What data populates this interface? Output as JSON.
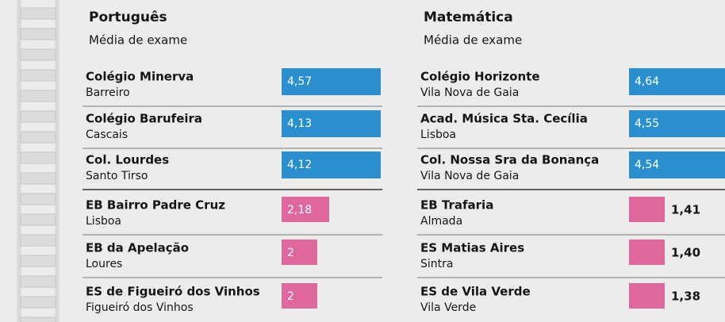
{
  "panels": [
    {
      "title": "Português",
      "subtitle": "Média de exame",
      "rows": [
        {
          "school": "Colégio Minerva",
          "place": "Barreiro",
          "value": "4,57"
        },
        {
          "school": "Colégio  Barufeira",
          "place": "Cascais",
          "value": "4,13"
        },
        {
          "school": "Col. Lourdes",
          "place": "Santo Tirso",
          "value": "4,12"
        },
        {
          "school": "EB Bairro Padre Cruz",
          "place": "Lisboa",
          "value": "2,18"
        },
        {
          "school": "EB da Apelação",
          "place": "Loures",
          "value": "2"
        },
        {
          "school": "ES de Figueiró dos Vinhos",
          "place": "Figueiró dos Vinhos",
          "value": "2"
        }
      ]
    },
    {
      "title": "Matemática",
      "subtitle": "Média de exame",
      "rows": [
        {
          "school": "Colégio Horizonte",
          "place": "Vila Nova de Gaia",
          "value": "4,64"
        },
        {
          "school": "Acad. Música Sta. Cecília",
          "place": "Lisboa",
          "value": "4,55"
        },
        {
          "school": "Col. Nossa Sra da Bonança",
          "place": "Vila Nova de Gaia",
          "value": "4,54"
        },
        {
          "school": "EB Trafaria",
          "place": "Almada",
          "value": "1,41"
        },
        {
          "school": "ES Matias Aires",
          "place": "Sintra",
          "value": "1,40"
        },
        {
          "school": "ES de Vila Verde",
          "place": "Vila Verde",
          "value": "1,38"
        }
      ]
    }
  ]
}
